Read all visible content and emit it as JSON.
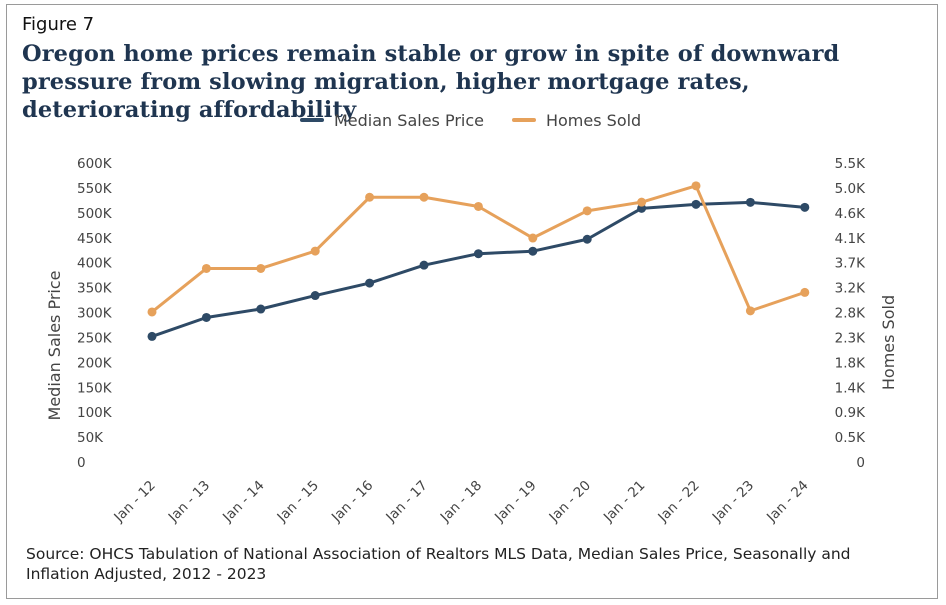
{
  "figure_label": "Figure 7",
  "chart_data": {
    "type": "line",
    "title": "Oregon home prices remain stable or grow in spite of downward pressure from slowing migration, higher mortgage rates, deteriorating affordability",
    "categories": [
      "Jan - 12",
      "Jan - 13",
      "Jan - 14",
      "Jan - 15",
      "Jan - 16",
      "Jan - 17",
      "Jan - 18",
      "Jan - 19",
      "Jan - 20",
      "Jan - 21",
      "Jan - 22",
      "Jan - 23",
      "Jan - 24"
    ],
    "series": [
      {
        "name": "Median Sales Price",
        "axis": "left",
        "color": "#2e4a66",
        "values": [
          252000,
          290000,
          307000,
          334000,
          359000,
          395000,
          418000,
          423000,
          447000,
          509000,
          517000,
          521000,
          511000
        ]
      },
      {
        "name": "Homes Sold",
        "axis": "right",
        "color": "#e6a15b",
        "values": [
          2760,
          3560,
          3560,
          3880,
          4870,
          4870,
          4700,
          4120,
          4620,
          4780,
          5080,
          2780,
          3120
        ]
      }
    ],
    "y_left": {
      "label": "Median Sales Price",
      "range": [
        0,
        600000
      ],
      "tick_values": [
        0,
        50000,
        100000,
        150000,
        200000,
        250000,
        300000,
        350000,
        400000,
        450000,
        500000,
        550000,
        600000
      ],
      "tick_labels": [
        "0",
        "50K",
        "100K",
        "150K",
        "200K",
        "250K",
        "300K",
        "350K",
        "400K",
        "450K",
        "500K",
        "550K",
        "600K"
      ]
    },
    "y_right": {
      "label": "Homes Sold",
      "range": [
        0,
        5500
      ],
      "tick_values": [
        0,
        458,
        917,
        1375,
        1833,
        2292,
        2750,
        3208,
        3667,
        4125,
        4583,
        5042,
        5500
      ],
      "tick_labels": [
        "0",
        "0.5K",
        "0.9K",
        "1.4K",
        "1.8K",
        "2.3K",
        "2.8K",
        "3.2K",
        "3.7K",
        "4.1K",
        "4.6K",
        "5.0K",
        "5.5K"
      ]
    },
    "grid": false,
    "legend_position": "top-center"
  },
  "source": "Source: OHCS Tabulation of National Association of Realtors MLS Data, Median Sales Price, Seasonally and Inflation Adjusted, 2012 - 2023"
}
